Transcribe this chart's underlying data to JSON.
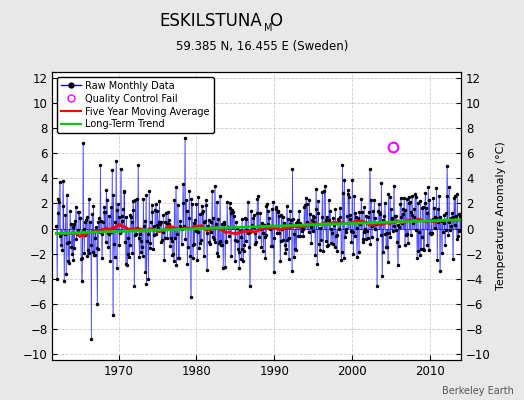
{
  "title_main": "ESKILSTUNA",
  "title_sub": "M",
  "title_end": "O",
  "subtitle": "59.385 N, 16.455 E (Sweden)",
  "ylabel": "Temperature Anomaly (°C)",
  "credit": "Berkeley Earth",
  "ylim": [
    -10.5,
    12.5
  ],
  "yticks": [
    -10,
    -8,
    -6,
    -4,
    -2,
    0,
    2,
    4,
    6,
    8,
    10,
    12
  ],
  "year_start": 1962,
  "year_end": 2013,
  "xticks": [
    1970,
    1980,
    1990,
    2000,
    2010
  ],
  "plot_bg": "#ffffff",
  "fig_bg": "#e8e8e8",
  "line_color": "#0000ff",
  "ma_color": "#ff0000",
  "trend_color": "#00cc00",
  "qc_color": "#ff00ff",
  "grid_color": "#cccccc",
  "seed": 17
}
